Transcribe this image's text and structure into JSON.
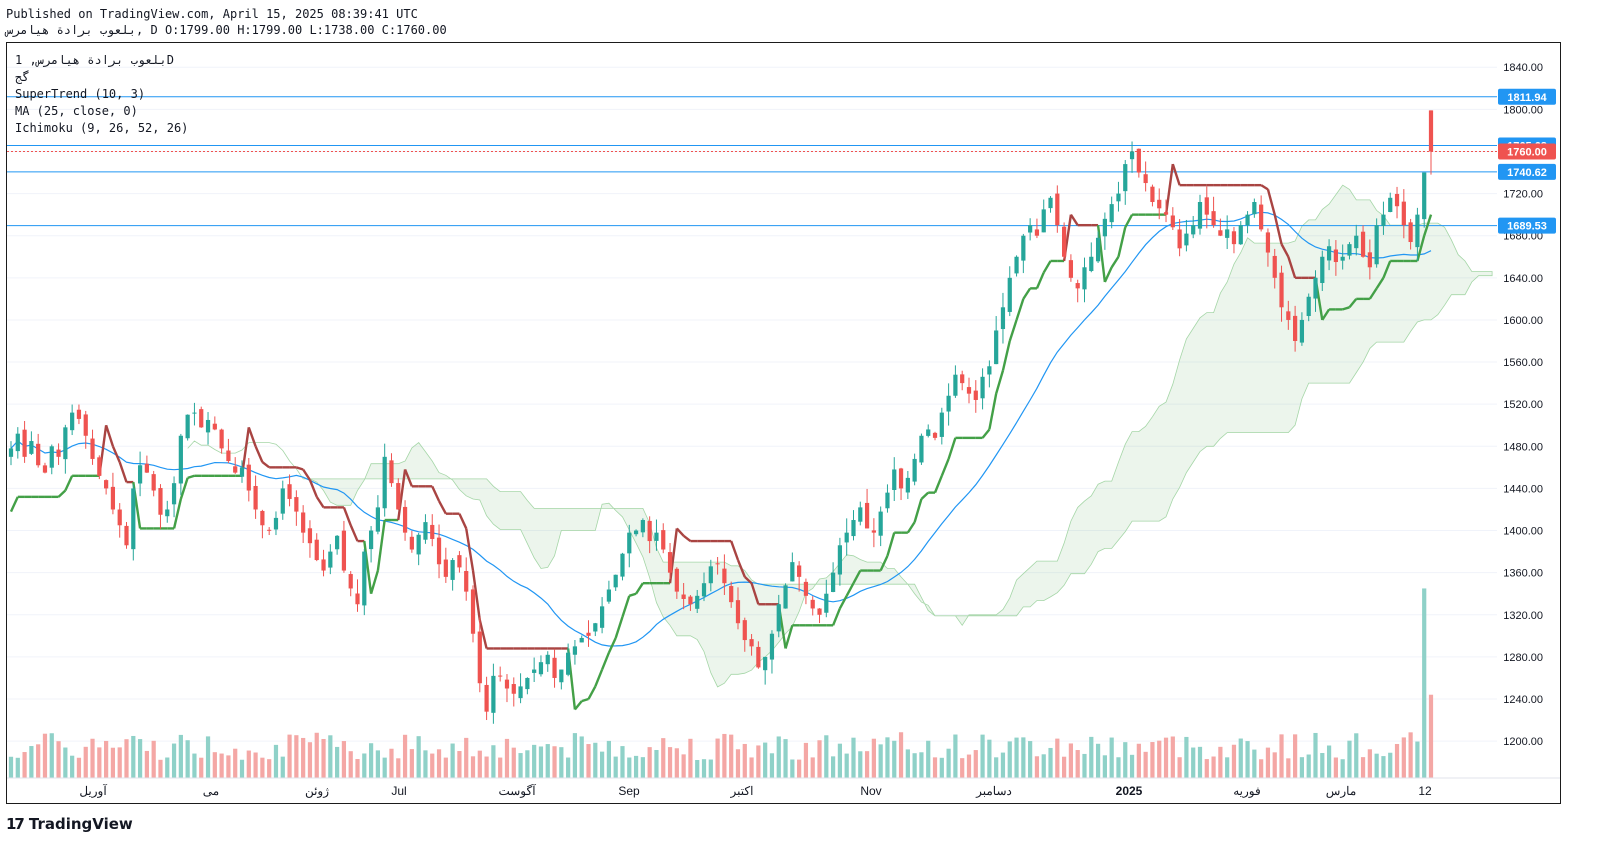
{
  "header": {
    "published": "Published on TradingView.com, April 15, 2025 08:39:41 UTC",
    "ohlc": "بلعوب برادة هيامرس, D O:1799.00 H:1799.00 L:1738.00 C:1760.00"
  },
  "legend": {
    "symbol": "بلعوب برادة هيامرس, 1D",
    "exchange": "گج",
    "indicators": [
      "SuperTrend (10, 3)",
      "MA (25, close, 0)",
      "Ichimoku (9, 26, 52, 26)"
    ]
  },
  "footer": {
    "brand": "TradingView",
    "mark": "17"
  },
  "colors": {
    "up": "#26a69a",
    "down": "#ef5350",
    "ma": "#2196f3",
    "supertrend_up": "#43a047",
    "supertrend_down": "#a94442",
    "level": "#2196f3",
    "last": "#ef5350"
  },
  "chart_data": {
    "type": "candlestick",
    "title": "",
    "y_axis": {
      "ticks": [
        1200,
        1240,
        1280,
        1320,
        1360,
        1400,
        1440,
        1480,
        1520,
        1560,
        1600,
        1640,
        1680,
        1720,
        1760,
        1800,
        1840
      ],
      "ylim": [
        1165,
        1863
      ]
    },
    "x_axis": {
      "labels": [
        "آوریل",
        "می",
        "ژوئن",
        "Jul",
        "آگوست",
        "Sep",
        "اکتبر",
        "Nov",
        "دسامبر",
        "2025",
        "فوریه",
        "مارس",
        "12"
      ]
    },
    "price_levels": [
      1811.94,
      1765.68,
      1740.62,
      1689.53
    ],
    "last_price": 1760.0,
    "last_bar": {
      "open": 1799.0,
      "high": 1799.0,
      "low": 1738.0,
      "close": 1760.0
    },
    "grid": true,
    "candles_close": [
      1478,
      1492,
      1470,
      1485,
      1462,
      1455,
      1480,
      1470,
      1498,
      1512,
      1506,
      1490,
      1468,
      1452,
      1440,
      1420,
      1405,
      1386,
      1440,
      1462,
      1455,
      1438,
      1415,
      1420,
      1445,
      1490,
      1510,
      1512,
      1498,
      1505,
      1496,
      1478,
      1466,
      1455,
      1460,
      1438,
      1420,
      1405,
      1400,
      1412,
      1440,
      1430,
      1418,
      1398,
      1388,
      1372,
      1362,
      1380,
      1395,
      1362,
      1345,
      1330,
      1380,
      1400,
      1422,
      1470,
      1445,
      1420,
      1398,
      1382,
      1396,
      1408,
      1392,
      1368,
      1356,
      1372,
      1365,
      1342,
      1302,
      1255,
      1228,
      1262,
      1262,
      1250,
      1245,
      1252,
      1260,
      1268,
      1275,
      1282,
      1260,
      1268,
      1284,
      1290,
      1298,
      1300,
      1312,
      1328,
      1344,
      1358,
      1378,
      1398,
      1400,
      1410,
      1390,
      1398,
      1382,
      1360,
      1342,
      1335,
      1330,
      1338,
      1350,
      1366,
      1368,
      1350,
      1332,
      1312,
      1296,
      1290,
      1270,
      1280,
      1302,
      1330,
      1348,
      1370,
      1356,
      1338,
      1326,
      1320,
      1340,
      1360,
      1386,
      1398,
      1410,
      1422,
      1402,
      1398,
      1418,
      1436,
      1458,
      1440,
      1450,
      1468,
      1490,
      1496,
      1488,
      1512,
      1528,
      1548,
      1540,
      1530,
      1524,
      1546,
      1556,
      1590,
      1612,
      1640,
      1660,
      1680,
      1690,
      1680,
      1705,
      1716,
      1690,
      1660,
      1640,
      1630,
      1650,
      1660,
      1678,
      1696,
      1710,
      1720,
      1748,
      1760,
      1740,
      1730,
      1712,
      1706,
      1700,
      1688,
      1668,
      1682,
      1690,
      1712,
      1700,
      1690,
      1680,
      1686,
      1672,
      1690,
      1700,
      1712,
      1686,
      1664,
      1640,
      1612,
      1600,
      1580,
      1600,
      1622,
      1640,
      1660,
      1670,
      1655,
      1660,
      1672,
      1680,
      1660,
      1650,
      1690,
      1700,
      1716,
      1708,
      1690,
      1674,
      1700,
      1740,
      1760
    ]
  }
}
